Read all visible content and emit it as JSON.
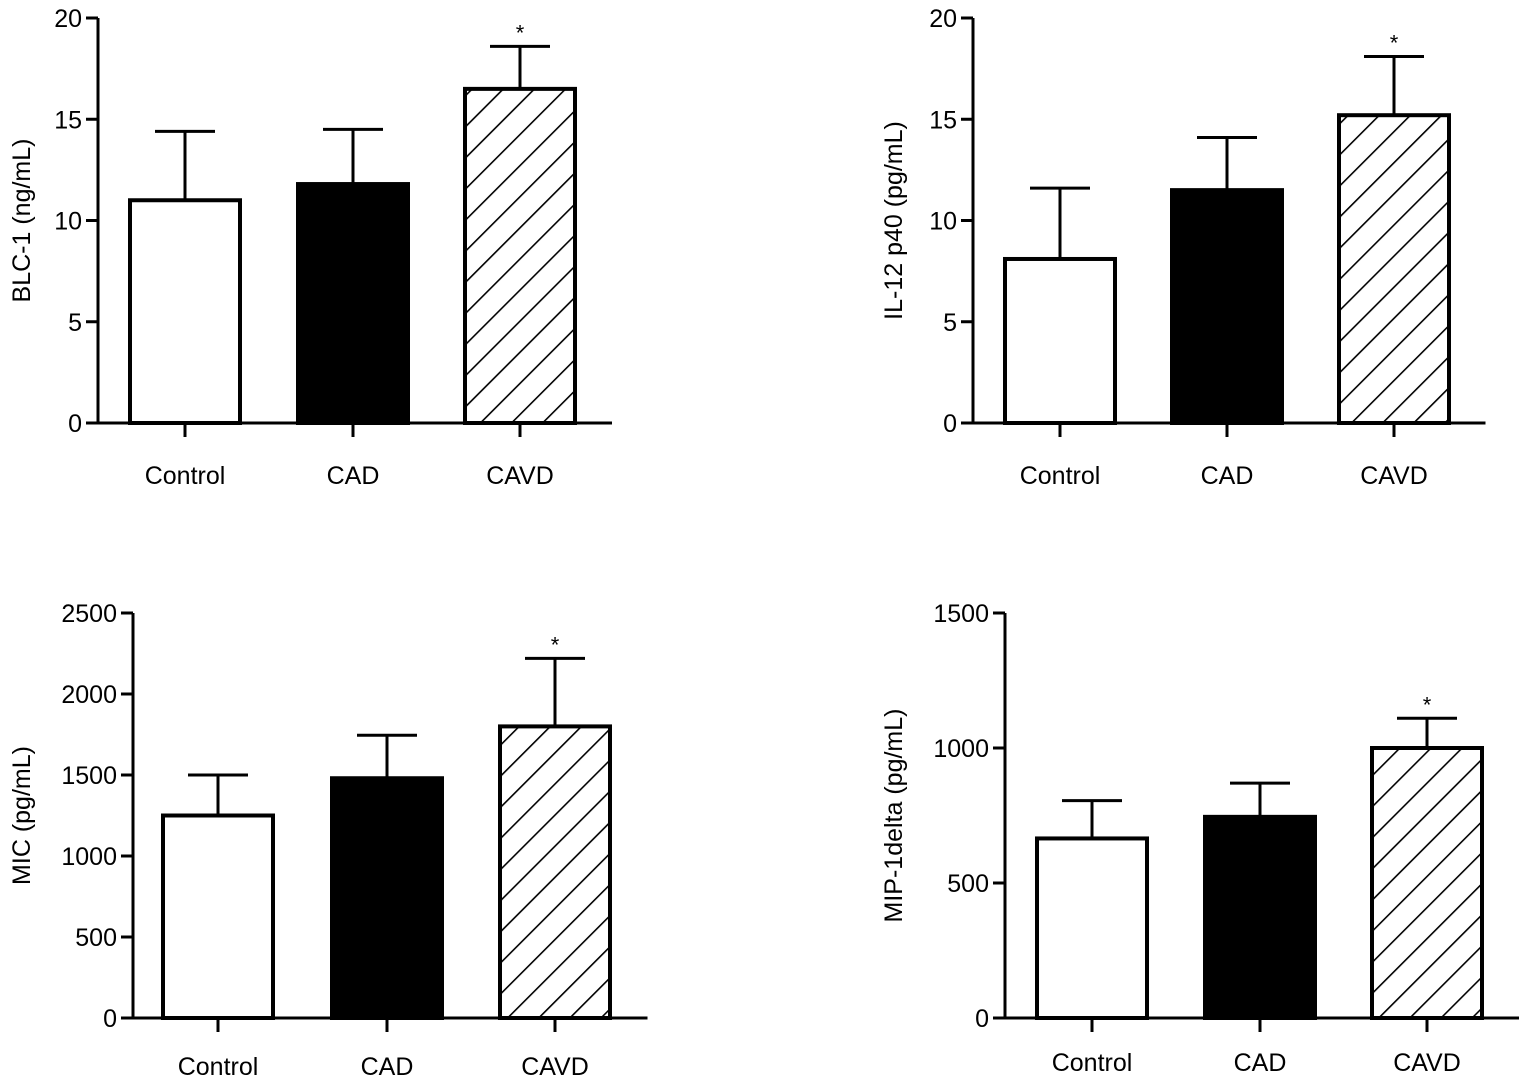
{
  "chart_data": [
    {
      "type": "bar",
      "categories": [
        "Control",
        "CAD",
        "CAVD"
      ],
      "values": [
        11.0,
        11.8,
        16.5
      ],
      "errors": [
        3.4,
        2.7,
        2.1
      ],
      "significance": [
        "",
        "",
        "*"
      ],
      "fills": [
        "white",
        "black",
        "hatch"
      ],
      "ylabel": "BLC-1 (ng/mL)",
      "ylim": [
        0,
        20
      ],
      "yticks": [
        0,
        5,
        10,
        15,
        20
      ],
      "ytick_labels": [
        "0",
        "5",
        "10",
        "15",
        "20"
      ]
    },
    {
      "type": "bar",
      "categories": [
        "Control",
        "CAD",
        "CAVD"
      ],
      "values": [
        8.1,
        11.5,
        15.2
      ],
      "errors": [
        3.5,
        2.6,
        2.9
      ],
      "significance": [
        "",
        "",
        "*"
      ],
      "fills": [
        "white",
        "black",
        "hatch"
      ],
      "ylabel": "IL-12 p40 (pg/mL)",
      "ylim": [
        0,
        20
      ],
      "yticks": [
        0,
        5,
        10,
        15,
        20
      ],
      "ytick_labels": [
        "0",
        "5",
        "10",
        "15",
        "20"
      ]
    },
    {
      "type": "bar",
      "categories": [
        "Control",
        "CAD",
        "CAVD"
      ],
      "values": [
        1250,
        1480,
        1800
      ],
      "errors": [
        250,
        265,
        420
      ],
      "significance": [
        "",
        "",
        "*"
      ],
      "fills": [
        "white",
        "black",
        "hatch"
      ],
      "ylabel": "MIC (pg/mL)",
      "ylim": [
        0,
        2500
      ],
      "yticks": [
        0,
        500,
        1000,
        1500,
        2000,
        2500
      ],
      "ytick_labels": [
        "0",
        "500",
        "1000",
        "1500",
        "2000",
        "2500"
      ]
    },
    {
      "type": "bar",
      "categories": [
        "Control",
        "CAD",
        "CAVD"
      ],
      "values": [
        665,
        745,
        1000
      ],
      "errors": [
        140,
        125,
        110
      ],
      "significance": [
        "",
        "",
        "*"
      ],
      "fills": [
        "white",
        "black",
        "hatch"
      ],
      "ylabel": "MIP-1delta (pg/mL)",
      "ylim": [
        0,
        1500
      ],
      "yticks": [
        0,
        500,
        1000,
        1500
      ],
      "ytick_labels": [
        "0",
        "500",
        "1000",
        "1500"
      ]
    }
  ]
}
